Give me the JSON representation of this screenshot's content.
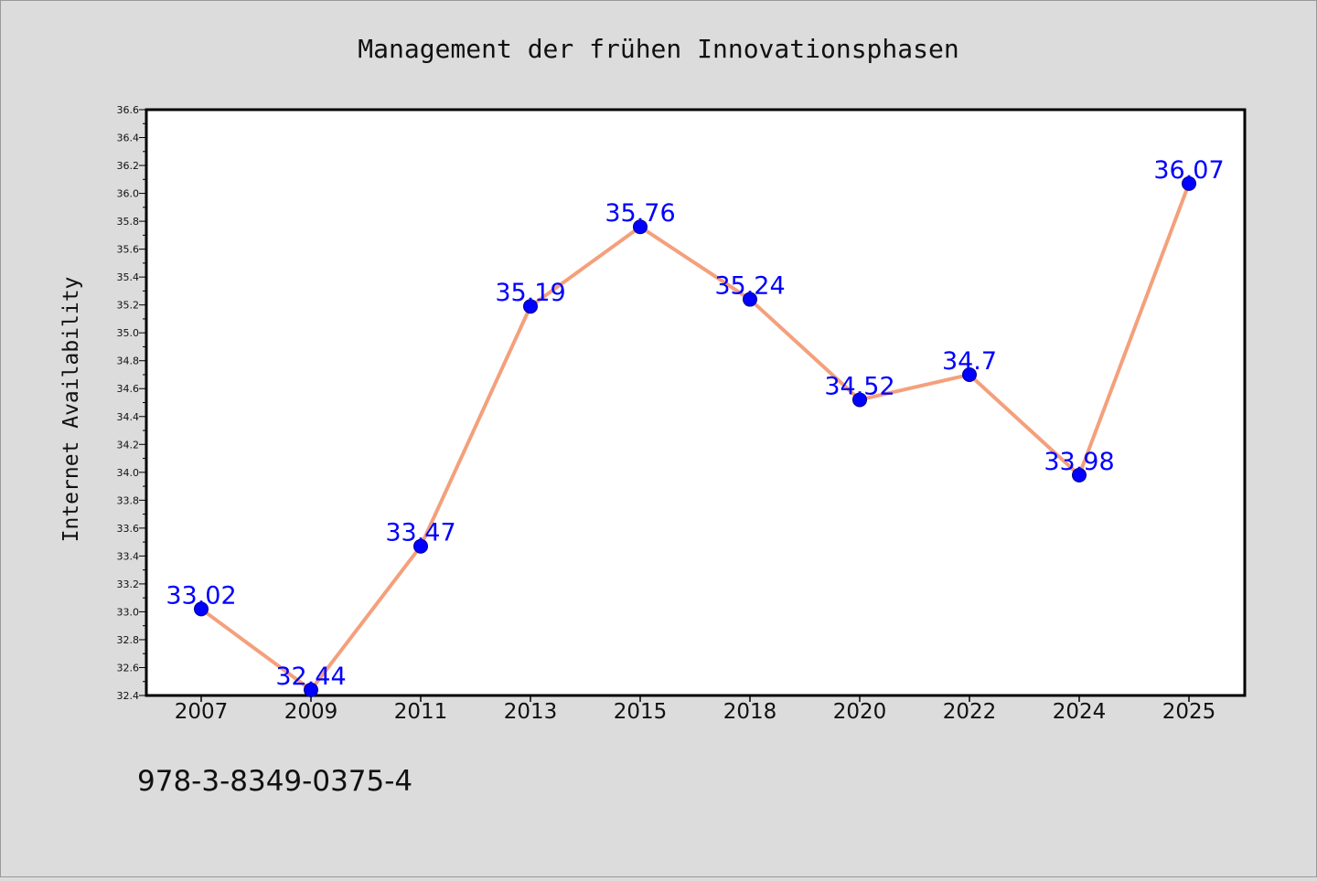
{
  "chart_data": {
    "type": "line",
    "title": "Management der frühen Innovationsphasen",
    "xlabel": "",
    "ylabel": "Internet Availability",
    "categories": [
      "2007",
      "2009",
      "2011",
      "2013",
      "2015",
      "2018",
      "2020",
      "2022",
      "2024",
      "2025"
    ],
    "series": [
      {
        "values": [
          33.02,
          32.44,
          33.47,
          35.19,
          35.76,
          35.24,
          34.52,
          34.7,
          33.98,
          36.07
        ],
        "labels": [
          "33.02",
          "32.44",
          "33.47",
          "35.19",
          "35.76",
          "35.24",
          "34.52",
          "34.7",
          "33.98",
          "36.07"
        ]
      }
    ],
    "ylim": [
      32.4,
      36.6
    ],
    "yticks": [
      "32.4",
      "32.6",
      "32.8",
      "33.0",
      "33.2",
      "33.4",
      "33.6",
      "33.8",
      "34.0",
      "34.2",
      "34.4",
      "34.6",
      "34.8",
      "35.0",
      "35.2",
      "35.4",
      "35.6",
      "35.8",
      "36.0",
      "36.2",
      "36.4",
      "36.6"
    ],
    "grid": false,
    "legend": "none",
    "colors": {
      "background": "#dcdcdc",
      "plot_background": "#ffffff",
      "line": "#f4a07c",
      "marker": "#0000ff",
      "data_label": "#0000ff",
      "text": "#111111"
    }
  },
  "footer_text": "978-3-8349-0375-4"
}
